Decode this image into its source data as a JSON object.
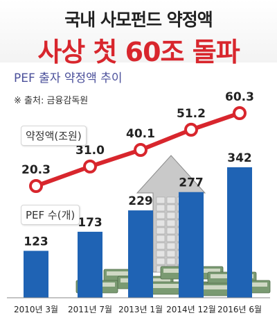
{
  "header": {
    "line1": "국내 사모펀드 약정액",
    "line2": "사상 첫 60조 돌파"
  },
  "subtitle": "PEF 출자 약정액 추이",
  "source": "※ 출처: 금융감독원",
  "colors": {
    "accent_red": "#d8262d",
    "bar_blue": "#1f63b4",
    "subtitle_purple": "#4a4f9a"
  },
  "chart_data": {
    "type": "bar",
    "categories": [
      "2010년 3월",
      "2011년 7월",
      "2013년 1월",
      "2014년 12월",
      "2016년 6월"
    ],
    "series": [
      {
        "name": "PEF 수(개)",
        "type": "bar",
        "values": [
          123,
          173,
          229,
          277,
          342
        ]
      },
      {
        "name": "약정액(조원)",
        "type": "line",
        "values": [
          20.3,
          31.0,
          40.1,
          51.2,
          60.3
        ]
      }
    ],
    "value_labels_bar": [
      "123",
      "173",
      "229",
      "277",
      "342"
    ],
    "value_labels_line": [
      "20.3",
      "31.0",
      "40.1",
      "51.2",
      "60.3"
    ],
    "legend": {
      "line": "약정액(조원)",
      "bar": "PEF 수(개)"
    }
  }
}
